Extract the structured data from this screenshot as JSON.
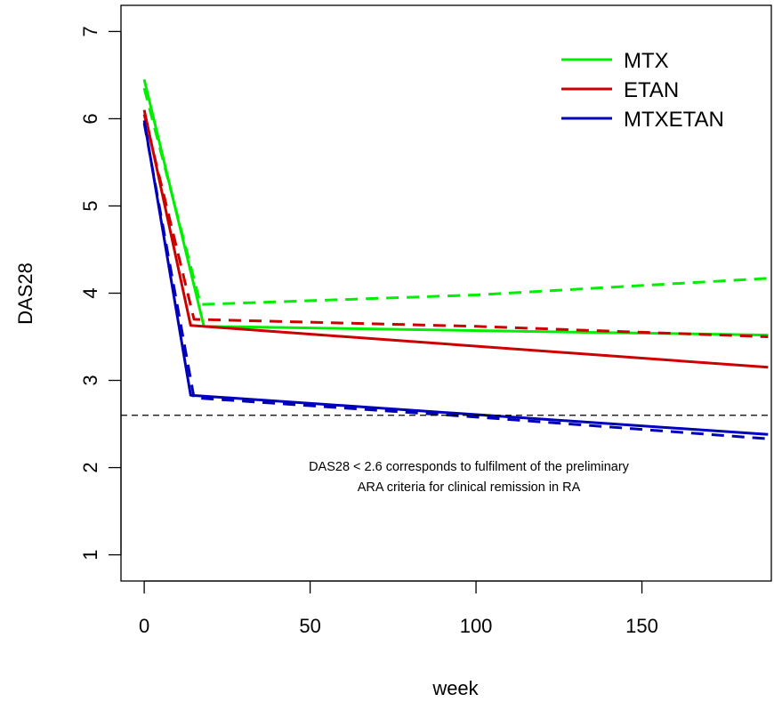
{
  "chart_data": {
    "type": "line",
    "xlabel": "week",
    "ylabel": "DAS28",
    "xlim": [
      -7,
      189
    ],
    "ylim": [
      0.7,
      7.3
    ],
    "x_ticks": [
      0,
      50,
      100,
      150
    ],
    "x_tick_labels": [
      "0",
      "50",
      "100",
      "150"
    ],
    "y_ticks": [
      1,
      2,
      3,
      4,
      5,
      6,
      7
    ],
    "y_tick_labels": [
      "1",
      "2",
      "3",
      "4",
      "5",
      "6",
      "7"
    ],
    "grid": false,
    "legend_position": "top-right",
    "legend": [
      "MTX",
      "ETAN",
      "MTXETAN"
    ],
    "reference_line": {
      "y": 2.6,
      "style": "dashed",
      "color": "#000000"
    },
    "annotation": [
      "DAS28 < 2.6 corresponds to fulfilment of the preliminary",
      "ARA criteria for clinical remission in RA"
    ],
    "series": [
      {
        "name": "MTX",
        "color": "#00ee00",
        "solid": [
          [
            0,
            6.45
          ],
          [
            18,
            3.62
          ],
          [
            188,
            3.52
          ]
        ],
        "dashed": [
          [
            0,
            6.35
          ],
          [
            17,
            3.87
          ],
          [
            100,
            3.98
          ],
          [
            188,
            4.17
          ]
        ]
      },
      {
        "name": "ETAN",
        "color": "#cc0000",
        "solid": [
          [
            0,
            6.1
          ],
          [
            14,
            3.63
          ],
          [
            188,
            3.15
          ]
        ],
        "dashed": [
          [
            0,
            6.05
          ],
          [
            15,
            3.7
          ],
          [
            100,
            3.62
          ],
          [
            188,
            3.5
          ]
        ]
      },
      {
        "name": "MTXETAN",
        "color": "#0000bb",
        "solid": [
          [
            0,
            5.98
          ],
          [
            14,
            2.83
          ],
          [
            188,
            2.38
          ]
        ],
        "dashed": [
          [
            0,
            5.95
          ],
          [
            15,
            2.8
          ],
          [
            100,
            2.58
          ],
          [
            188,
            2.33
          ]
        ]
      }
    ]
  }
}
